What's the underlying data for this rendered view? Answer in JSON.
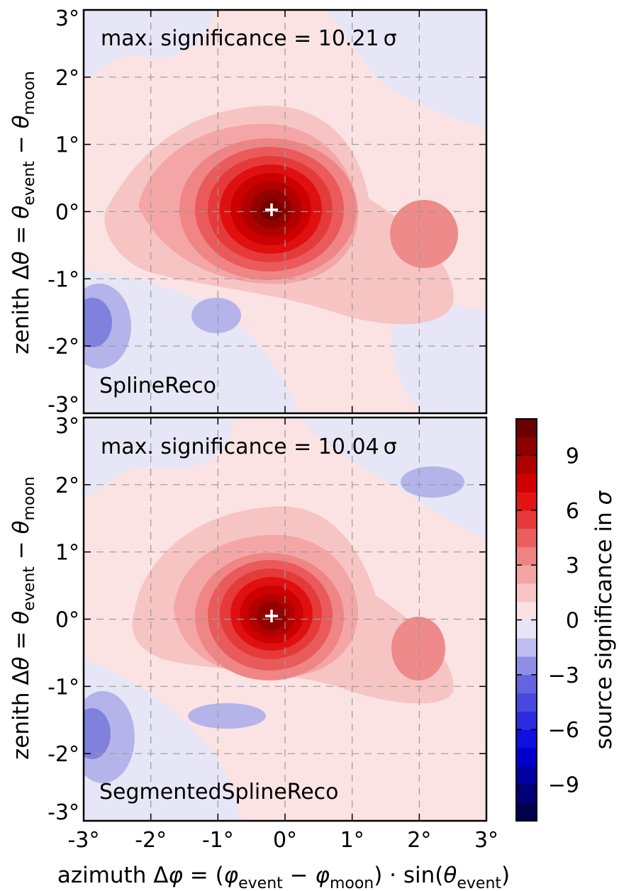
{
  "chart_data": {
    "type": "heatmap",
    "panels": [
      {
        "annotation": "max. significance = 10.21 σ",
        "label": "SplineReco",
        "peak": {
          "x": -0.2,
          "y": 0.0,
          "value": 10.21
        },
        "secondary_blob": {
          "x": 2.0,
          "y": -0.4,
          "value": 3.0
        },
        "negative_blob": {
          "x": -3.0,
          "y": -1.6,
          "value": -4.5
        }
      },
      {
        "annotation": "max. significance = 10.04 σ",
        "label": "SegmentedSplineReco",
        "peak": {
          "x": -0.2,
          "y": 0.0,
          "value": 10.04
        },
        "secondary_blob": {
          "x": 1.9,
          "y": -0.5,
          "value": 3.0
        },
        "negative_blob": {
          "x": -3.0,
          "y": -1.6,
          "value": -4.0
        }
      }
    ],
    "x_ticks": [
      "-3°",
      "-2°",
      "-1°",
      "0°",
      "1°",
      "2°",
      "3°"
    ],
    "x_tick_values": [
      -3,
      -2,
      -1,
      0,
      1,
      2,
      3
    ],
    "y_ticks": [
      "-3°",
      "-2°",
      "-1°",
      "0°",
      "1°",
      "2°",
      "3°"
    ],
    "y_tick_values": [
      -3,
      -2,
      -1,
      0,
      1,
      2,
      3
    ],
    "xlim": [
      -3,
      3
    ],
    "ylim": [
      -3,
      3
    ],
    "xlabel": "azimuth Δφ = (φ_event − φ_moon) · sin(θ_event)",
    "ylabel": "zenith Δθ = θ_event − θ_moon",
    "colorbar": {
      "label": "source significance in σ",
      "ticks": [
        "9",
        "6",
        "3",
        "0",
        "−3",
        "−6",
        "−9"
      ],
      "tick_values": [
        9,
        6,
        3,
        0,
        -3,
        -6,
        -9
      ],
      "range": [
        -11,
        11
      ]
    }
  }
}
